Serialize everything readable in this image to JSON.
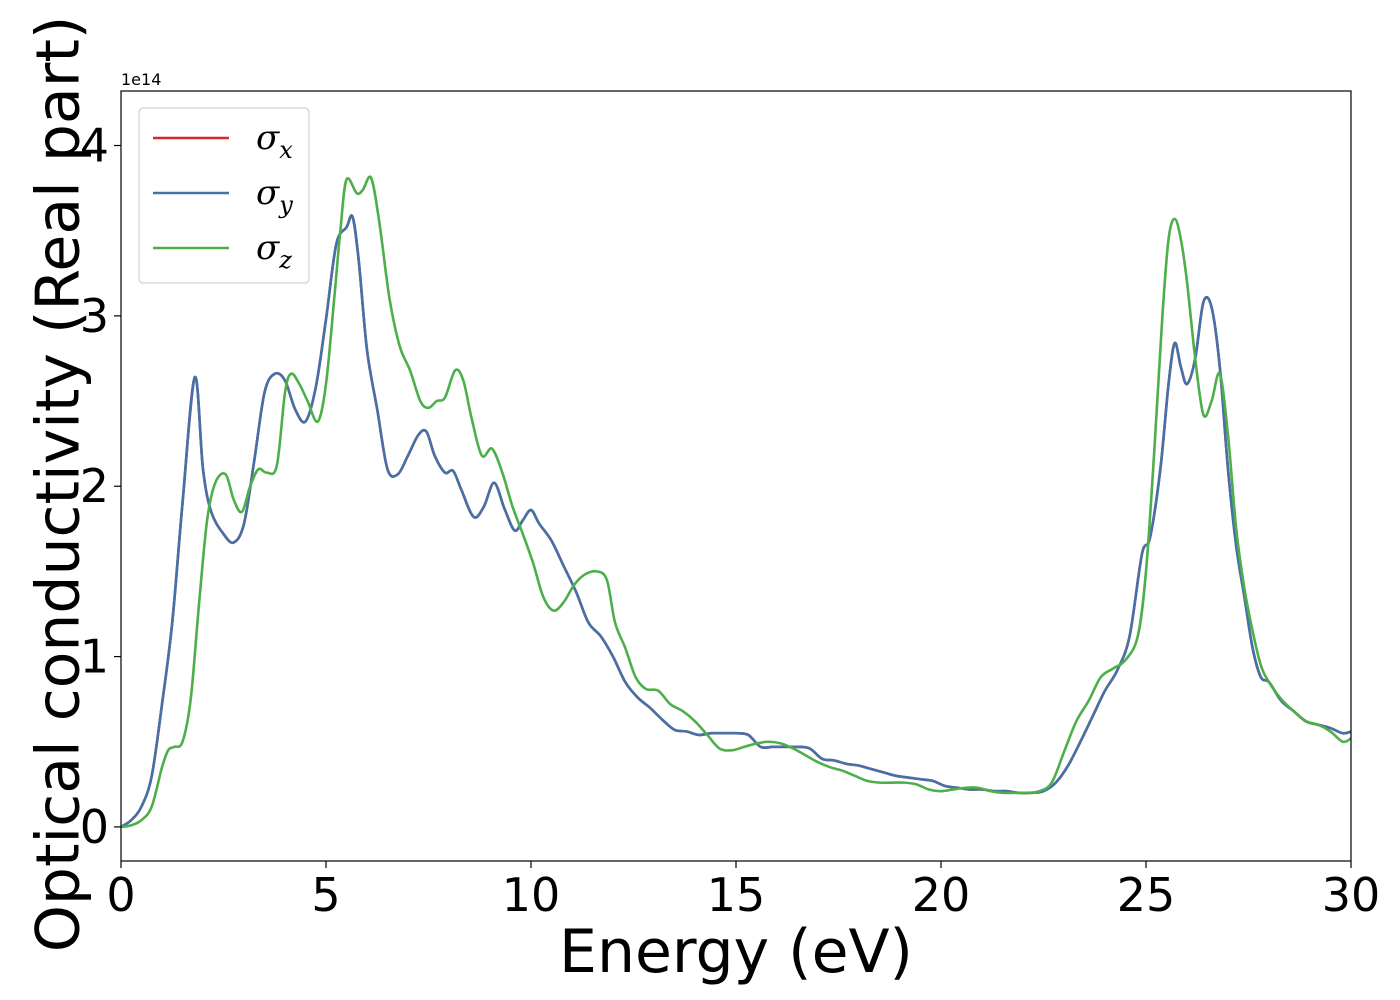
{
  "chart_data": {
    "type": "line",
    "title": "",
    "xlabel": "Energy (eV)",
    "ylabel": "Optical conductivity (Real part)",
    "offset_text": "1e14",
    "xlim": [
      0,
      30
    ],
    "ylim": [
      -0.2,
      4.32
    ],
    "xticks": [
      0,
      5,
      10,
      15,
      20,
      25,
      30
    ],
    "xtick_labels": [
      "0",
      "5",
      "10",
      "15",
      "20",
      "25",
      "30"
    ],
    "yticks": [
      0,
      1,
      2,
      3,
      4
    ],
    "ytick_labels": [
      "0",
      "1",
      "2",
      "3",
      "4"
    ],
    "grid": false,
    "legend_position": "top-left",
    "series": [
      {
        "name": "σ",
        "subscript": "x",
        "color": "#d62728",
        "x": [
          0,
          0.25,
          0.5,
          0.75,
          1.0,
          1.25,
          1.5,
          1.8,
          2.0,
          2.2,
          2.5,
          2.75,
          3.0,
          3.25,
          3.5,
          3.75,
          4.0,
          4.25,
          4.5,
          4.75,
          5.0,
          5.25,
          5.5,
          5.65,
          5.8,
          6.0,
          6.25,
          6.5,
          6.75,
          7.0,
          7.25,
          7.45,
          7.65,
          7.9,
          8.1,
          8.3,
          8.6,
          8.85,
          9.1,
          9.35,
          9.6,
          9.8,
          10.0,
          10.2,
          10.5,
          10.8,
          11.1,
          11.4,
          11.7,
          12.0,
          12.3,
          12.6,
          12.9,
          13.2,
          13.5,
          13.8,
          14.1,
          14.4,
          14.7,
          15.0,
          15.3,
          15.6,
          15.9,
          16.2,
          16.5,
          16.8,
          17.1,
          17.4,
          17.7,
          18.0,
          18.3,
          18.6,
          18.9,
          19.2,
          19.5,
          19.8,
          20.1,
          20.4,
          20.7,
          21.0,
          21.3,
          21.6,
          21.9,
          22.2,
          22.5,
          22.8,
          23.1,
          23.4,
          23.7,
          24.0,
          24.3,
          24.6,
          24.9,
          25.1,
          25.35,
          25.55,
          25.7,
          25.85,
          26.0,
          26.2,
          26.4,
          26.6,
          26.8,
          27.0,
          27.2,
          27.4,
          27.6,
          27.8,
          28.0,
          28.3,
          28.6,
          28.9,
          29.2,
          29.5,
          29.8,
          30.0
        ],
        "values": [
          0,
          0.04,
          0.12,
          0.3,
          0.72,
          1.2,
          1.9,
          2.64,
          2.1,
          1.85,
          1.72,
          1.67,
          1.78,
          2.15,
          2.55,
          2.66,
          2.62,
          2.45,
          2.38,
          2.58,
          2.98,
          3.42,
          3.52,
          3.58,
          3.32,
          2.8,
          2.45,
          2.1,
          2.07,
          2.18,
          2.3,
          2.32,
          2.18,
          2.08,
          2.09,
          1.98,
          1.82,
          1.88,
          2.02,
          1.87,
          1.74,
          1.8,
          1.86,
          1.78,
          1.68,
          1.53,
          1.38,
          1.2,
          1.12,
          1.0,
          0.85,
          0.76,
          0.7,
          0.63,
          0.57,
          0.56,
          0.54,
          0.55,
          0.55,
          0.55,
          0.54,
          0.47,
          0.47,
          0.47,
          0.47,
          0.46,
          0.4,
          0.39,
          0.37,
          0.36,
          0.34,
          0.32,
          0.3,
          0.29,
          0.28,
          0.27,
          0.24,
          0.23,
          0.22,
          0.22,
          0.21,
          0.21,
          0.2,
          0.2,
          0.21,
          0.26,
          0.36,
          0.5,
          0.65,
          0.8,
          0.92,
          1.12,
          1.6,
          1.7,
          2.1,
          2.6,
          2.84,
          2.7,
          2.6,
          2.75,
          3.08,
          3.05,
          2.7,
          2.1,
          1.65,
          1.35,
          1.05,
          0.88,
          0.85,
          0.74,
          0.68,
          0.62,
          0.6,
          0.58,
          0.55,
          0.56
        ]
      },
      {
        "name": "σ",
        "subscript": "y",
        "color": "#4472a8",
        "x": [
          0,
          0.25,
          0.5,
          0.75,
          1.0,
          1.25,
          1.5,
          1.8,
          2.0,
          2.2,
          2.5,
          2.75,
          3.0,
          3.25,
          3.5,
          3.75,
          4.0,
          4.25,
          4.5,
          4.75,
          5.0,
          5.25,
          5.5,
          5.65,
          5.8,
          6.0,
          6.25,
          6.5,
          6.75,
          7.0,
          7.25,
          7.45,
          7.65,
          7.9,
          8.1,
          8.3,
          8.6,
          8.85,
          9.1,
          9.35,
          9.6,
          9.8,
          10.0,
          10.2,
          10.5,
          10.8,
          11.1,
          11.4,
          11.7,
          12.0,
          12.3,
          12.6,
          12.9,
          13.2,
          13.5,
          13.8,
          14.1,
          14.4,
          14.7,
          15.0,
          15.3,
          15.6,
          15.9,
          16.2,
          16.5,
          16.8,
          17.1,
          17.4,
          17.7,
          18.0,
          18.3,
          18.6,
          18.9,
          19.2,
          19.5,
          19.8,
          20.1,
          20.4,
          20.7,
          21.0,
          21.3,
          21.6,
          21.9,
          22.2,
          22.5,
          22.8,
          23.1,
          23.4,
          23.7,
          24.0,
          24.3,
          24.6,
          24.9,
          25.1,
          25.35,
          25.55,
          25.7,
          25.85,
          26.0,
          26.2,
          26.4,
          26.6,
          26.8,
          27.0,
          27.2,
          27.4,
          27.6,
          27.8,
          28.0,
          28.3,
          28.6,
          28.9,
          29.2,
          29.5,
          29.8,
          30.0
        ],
        "values": [
          0,
          0.04,
          0.12,
          0.3,
          0.72,
          1.2,
          1.9,
          2.64,
          2.1,
          1.85,
          1.72,
          1.67,
          1.78,
          2.15,
          2.55,
          2.66,
          2.62,
          2.45,
          2.38,
          2.58,
          2.98,
          3.42,
          3.52,
          3.58,
          3.32,
          2.8,
          2.45,
          2.1,
          2.07,
          2.18,
          2.3,
          2.32,
          2.18,
          2.08,
          2.09,
          1.98,
          1.82,
          1.88,
          2.02,
          1.87,
          1.74,
          1.8,
          1.86,
          1.78,
          1.68,
          1.53,
          1.38,
          1.2,
          1.12,
          1.0,
          0.85,
          0.76,
          0.7,
          0.63,
          0.57,
          0.56,
          0.54,
          0.55,
          0.55,
          0.55,
          0.54,
          0.47,
          0.47,
          0.47,
          0.47,
          0.46,
          0.4,
          0.39,
          0.37,
          0.36,
          0.34,
          0.32,
          0.3,
          0.29,
          0.28,
          0.27,
          0.24,
          0.23,
          0.22,
          0.22,
          0.21,
          0.21,
          0.2,
          0.2,
          0.21,
          0.26,
          0.36,
          0.5,
          0.65,
          0.8,
          0.92,
          1.12,
          1.6,
          1.7,
          2.1,
          2.6,
          2.84,
          2.7,
          2.6,
          2.75,
          3.08,
          3.05,
          2.7,
          2.1,
          1.65,
          1.35,
          1.05,
          0.88,
          0.85,
          0.74,
          0.68,
          0.62,
          0.6,
          0.58,
          0.55,
          0.56
        ]
      },
      {
        "name": "σ",
        "subscript": "z",
        "color": "#4daf4a",
        "x": [
          0,
          0.25,
          0.5,
          0.75,
          1.0,
          1.15,
          1.3,
          1.5,
          1.7,
          1.9,
          2.1,
          2.3,
          2.55,
          2.75,
          2.95,
          3.15,
          3.35,
          3.55,
          3.8,
          4.0,
          4.15,
          4.35,
          4.55,
          4.8,
          5.0,
          5.2,
          5.35,
          5.5,
          5.75,
          5.9,
          6.1,
          6.3,
          6.55,
          6.8,
          7.05,
          7.3,
          7.5,
          7.7,
          7.9,
          8.15,
          8.35,
          8.55,
          8.8,
          9.05,
          9.3,
          9.55,
          9.8,
          10.05,
          10.3,
          10.55,
          10.8,
          11.05,
          11.3,
          11.6,
          11.85,
          12.05,
          12.3,
          12.55,
          12.8,
          13.1,
          13.4,
          13.7,
          14.0,
          14.3,
          14.6,
          14.9,
          15.2,
          15.5,
          15.8,
          16.1,
          16.4,
          16.7,
          17.0,
          17.3,
          17.6,
          17.9,
          18.2,
          18.5,
          18.8,
          19.1,
          19.4,
          19.7,
          20.0,
          20.3,
          20.6,
          20.9,
          21.2,
          21.5,
          21.8,
          22.1,
          22.4,
          22.7,
          23.0,
          23.3,
          23.6,
          23.9,
          24.2,
          24.5,
          24.8,
          25.0,
          25.2,
          25.4,
          25.55,
          25.7,
          25.85,
          26.0,
          26.2,
          26.4,
          26.6,
          26.8,
          27.0,
          27.2,
          27.4,
          27.6,
          27.8,
          28.0,
          28.3,
          28.6,
          28.9,
          29.2,
          29.5,
          29.8,
          30.0
        ],
        "values": [
          0,
          0.01,
          0.04,
          0.12,
          0.35,
          0.45,
          0.47,
          0.5,
          0.75,
          1.3,
          1.8,
          2.02,
          2.07,
          1.92,
          1.85,
          2.0,
          2.1,
          2.08,
          2.12,
          2.55,
          2.66,
          2.6,
          2.5,
          2.38,
          2.6,
          3.1,
          3.5,
          3.8,
          3.72,
          3.74,
          3.81,
          3.55,
          3.1,
          2.82,
          2.68,
          2.5,
          2.46,
          2.5,
          2.52,
          2.68,
          2.62,
          2.4,
          2.18,
          2.22,
          2.08,
          1.88,
          1.72,
          1.55,
          1.35,
          1.27,
          1.32,
          1.42,
          1.48,
          1.5,
          1.45,
          1.2,
          1.05,
          0.88,
          0.81,
          0.8,
          0.72,
          0.68,
          0.62,
          0.54,
          0.46,
          0.45,
          0.47,
          0.49,
          0.5,
          0.49,
          0.46,
          0.42,
          0.38,
          0.35,
          0.33,
          0.3,
          0.27,
          0.26,
          0.26,
          0.26,
          0.25,
          0.22,
          0.21,
          0.22,
          0.23,
          0.23,
          0.21,
          0.2,
          0.2,
          0.2,
          0.21,
          0.26,
          0.44,
          0.62,
          0.74,
          0.88,
          0.93,
          0.98,
          1.12,
          1.5,
          2.2,
          3.0,
          3.45,
          3.57,
          3.45,
          3.2,
          2.75,
          2.42,
          2.5,
          2.66,
          2.3,
          1.75,
          1.4,
          1.15,
          0.95,
          0.85,
          0.75,
          0.68,
          0.62,
          0.6,
          0.56,
          0.5,
          0.52
        ]
      }
    ]
  }
}
